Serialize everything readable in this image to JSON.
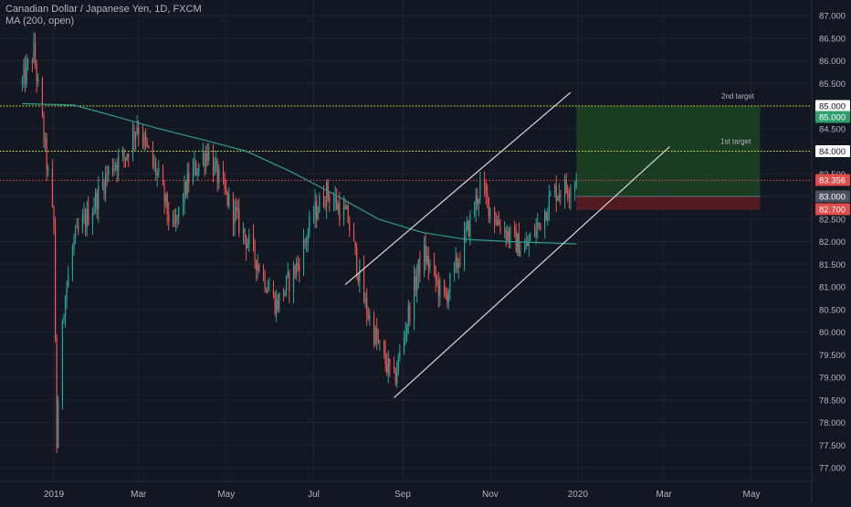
{
  "header": {
    "title": "Canadian Dollar / Japanese Yen, 1D, FXCM",
    "indicator": "MA (200, open)"
  },
  "colors": {
    "background": "#131722",
    "grid": "#1f2433",
    "axis_text": "#b2b5be",
    "up": "#26a69a",
    "down": "#ef5350",
    "ma": "#2a9d8f",
    "level_line": "#e6e63c",
    "profit_zone": "#1c4322",
    "loss_zone": "#5a1c22",
    "label_green": "#2e9e6b",
    "label_red": "#e04b4b",
    "label_gray": "#4c5160",
    "channel": "#d8d8d8"
  },
  "chart_data": {
    "type": "candlestick",
    "title": "Canadian Dollar / Japanese Yen, 1D, FXCM",
    "ylim": [
      76.7,
      87.2
    ],
    "y_ticks": [
      "77.000",
      "77.500",
      "78.000",
      "78.500",
      "79.000",
      "79.500",
      "80.000",
      "80.500",
      "81.000",
      "81.500",
      "82.000",
      "82.500",
      "83.000",
      "83.500",
      "84.000",
      "84.500",
      "85.000",
      "85.500",
      "86.000",
      "86.500",
      "87.000"
    ],
    "x_ticks": [
      "2019",
      "Mar",
      "May",
      "Jul",
      "Sep",
      "Nov",
      "2020",
      "Mar",
      "May"
    ],
    "x_tick_dates": [
      "2019-01-01",
      "2019-03-01",
      "2019-05-01",
      "2019-07-01",
      "2019-09-01",
      "2019-11-01",
      "2020-01-01",
      "2020-03-01",
      "2020-05-01"
    ],
    "close_path": [
      [
        "2018-12-10",
        85.5
      ],
      [
        "2018-12-18",
        86.2
      ],
      [
        "2018-12-24",
        84.6
      ],
      [
        "2019-01-01",
        82.3
      ],
      [
        "2019-01-03",
        77.5
      ],
      [
        "2019-01-07",
        80.4
      ],
      [
        "2019-01-15",
        82.0
      ],
      [
        "2019-01-30",
        82.9
      ],
      [
        "2019-02-10",
        83.7
      ],
      [
        "2019-02-20",
        83.9
      ],
      [
        "2019-02-28",
        84.6
      ],
      [
        "2019-03-06",
        84.1
      ],
      [
        "2019-03-15",
        83.4
      ],
      [
        "2019-03-25",
        82.2
      ],
      [
        "2019-04-05",
        83.4
      ],
      [
        "2019-04-18",
        84.0
      ],
      [
        "2019-04-28",
        83.2
      ],
      [
        "2019-05-10",
        82.4
      ],
      [
        "2019-05-25",
        81.4
      ],
      [
        "2019-06-05",
        80.6
      ],
      [
        "2019-06-20",
        81.5
      ],
      [
        "2019-07-01",
        82.6
      ],
      [
        "2019-07-10",
        83.1
      ],
      [
        "2019-07-25",
        82.5
      ],
      [
        "2019-08-05",
        80.7
      ],
      [
        "2019-08-15",
        79.7
      ],
      [
        "2019-08-26",
        78.9
      ],
      [
        "2019-09-05",
        80.4
      ],
      [
        "2019-09-15",
        81.8
      ],
      [
        "2019-09-30",
        80.7
      ],
      [
        "2019-10-10",
        81.6
      ],
      [
        "2019-10-25",
        83.2
      ],
      [
        "2019-11-05",
        82.5
      ],
      [
        "2019-11-15",
        82.1
      ],
      [
        "2019-11-25",
        81.8
      ],
      [
        "2019-12-05",
        82.4
      ],
      [
        "2019-12-15",
        83.1
      ],
      [
        "2019-12-25",
        83.2
      ],
      [
        "2019-12-31",
        83.356
      ]
    ],
    "series": [
      {
        "name": "MA (200, open)",
        "points": [
          [
            "2018-12-10",
            85.05
          ],
          [
            "2019-01-15",
            85.02
          ],
          [
            "2019-02-15",
            84.75
          ],
          [
            "2019-03-15",
            84.5
          ],
          [
            "2019-04-15",
            84.25
          ],
          [
            "2019-05-15",
            84.0
          ],
          [
            "2019-06-15",
            83.55
          ],
          [
            "2019-07-15",
            83.05
          ],
          [
            "2019-08-15",
            82.5
          ],
          [
            "2019-09-15",
            82.2
          ],
          [
            "2019-10-15",
            82.05
          ],
          [
            "2019-11-15",
            82.0
          ],
          [
            "2019-12-31",
            81.95
          ]
        ]
      }
    ],
    "levels": [
      {
        "value": 85.0,
        "label": "85.000"
      },
      {
        "value": 84.0,
        "label": "84.000"
      },
      {
        "value": 83.356,
        "label": "83.356"
      },
      {
        "value": 83.0,
        "label": "83.000"
      },
      {
        "value": 82.7,
        "label": "82.700"
      }
    ],
    "position": {
      "entry": 83.0,
      "stop": 82.7,
      "target_1": 84.0,
      "target_2": 85.0,
      "start": "2019-12-31",
      "end": "2020-05-07"
    },
    "channel": [
      {
        "from": [
          "2019-08-26",
          78.55
        ],
        "to": [
          "2020-03-05",
          84.1
        ]
      },
      {
        "from": [
          "2019-07-23",
          81.05
        ],
        "to": [
          "2019-12-27",
          85.3
        ]
      }
    ],
    "annotations": [
      {
        "text": "2nd target",
        "value": 85.0
      },
      {
        "text": "1st target",
        "value": 84.0
      }
    ],
    "last_price": 83.356,
    "grid": true
  }
}
